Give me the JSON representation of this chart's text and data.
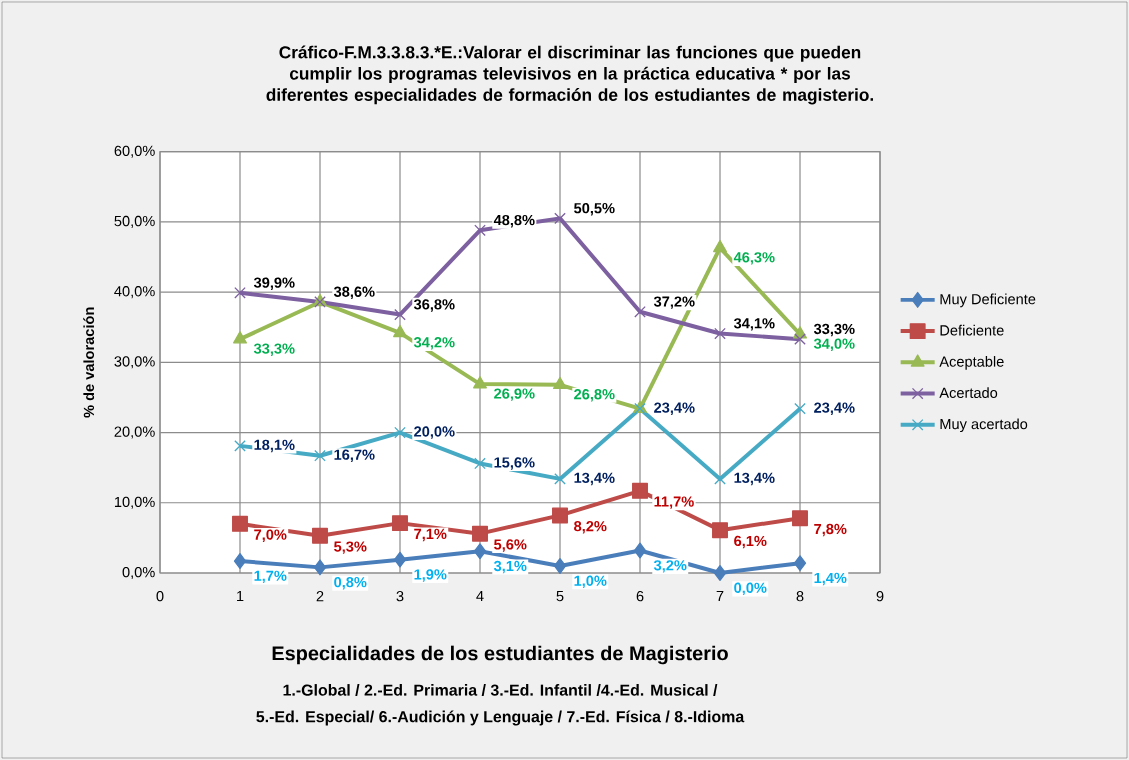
{
  "chart_data": {
    "type": "line",
    "title": "Cráfico-F.M.3.3.8.3.*E.:Valorar el discriminar las funciones que pueden cumplir los programas televisivos en la práctica educativa * por las diferentes especialidades de formación de los estudiantes de magisterio.",
    "xlabel": "Especialidades de los estudiantes de Magisterio",
    "ylabel": "% de valoración",
    "annotations": [
      "1.-Global / 2.-Ed. Primaria / 3.-Ed. Infantil /4.-Ed. Musical /",
      "5.-Ed. Especial/ 6.-Audición y Lenguaje / 7.-Ed. Física / 8.-Idioma"
    ],
    "x": [
      1,
      2,
      3,
      4,
      5,
      6,
      7,
      8
    ],
    "xlim": [
      0,
      9
    ],
    "xticks": [
      0,
      1,
      2,
      3,
      4,
      5,
      6,
      7,
      8,
      9
    ],
    "ylim": [
      0,
      60
    ],
    "yticks": [
      {
        "value": 0,
        "label": "0,0%"
      },
      {
        "value": 10,
        "label": "10,0%"
      },
      {
        "value": 20,
        "label": "20,0%"
      },
      {
        "value": 30,
        "label": "30,0%"
      },
      {
        "value": 40,
        "label": "40,0%"
      },
      {
        "value": 50,
        "label": "50,0%"
      },
      {
        "value": 60,
        "label": "60,0%"
      }
    ],
    "grid": true,
    "legend": "right",
    "series": [
      {
        "name": "Muy Deficiente",
        "color": "#4a7ebb",
        "marker": "diamond",
        "values": [
          1.7,
          0.8,
          1.9,
          3.1,
          1.0,
          3.2,
          0.0,
          1.4
        ],
        "value_labels": [
          "1,7%",
          "0,8%",
          "1,9%",
          "3,1%",
          "1,0%",
          "3,2%",
          "0,0%",
          "1,4%"
        ]
      },
      {
        "name": "Deficiente",
        "color": "#be4b48",
        "marker": "square",
        "values": [
          7.0,
          5.3,
          7.1,
          5.6,
          8.2,
          11.7,
          6.1,
          7.8
        ],
        "value_labels": [
          "7,0%",
          "5,3%",
          "7,1%",
          "5,6%",
          "8,2%",
          "11,7%",
          "6,1%",
          "7,8%"
        ]
      },
      {
        "name": "Aceptable",
        "color": "#98b954",
        "marker": "triangle",
        "values": [
          33.3,
          38.6,
          34.2,
          26.9,
          26.8,
          23.4,
          46.3,
          34.0
        ],
        "value_labels": [
          "33,3%",
          null,
          "34,2%",
          "26,9%",
          "26,8%",
          null,
          "46,3%",
          "34,0%"
        ]
      },
      {
        "name": "Acertado",
        "color": "#7d60a0",
        "marker": "cross",
        "values": [
          39.9,
          38.6,
          36.8,
          48.8,
          50.5,
          37.2,
          34.1,
          33.3
        ],
        "value_labels": [
          "39,9%",
          "38,6%",
          "36,8%",
          "48,8%",
          "50,5%",
          "37,2%",
          "34,1%",
          "33,3%"
        ]
      },
      {
        "name": "Muy acertado",
        "color": "#46aac5",
        "marker": "cross",
        "values": [
          18.1,
          16.7,
          20.0,
          15.6,
          13.4,
          23.4,
          13.4,
          23.4
        ],
        "value_labels": [
          "18,1%",
          "16,7%",
          "20,0%",
          "15,6%",
          "13,4%",
          "23,4%",
          "13,4%",
          "23,4%"
        ]
      }
    ]
  }
}
